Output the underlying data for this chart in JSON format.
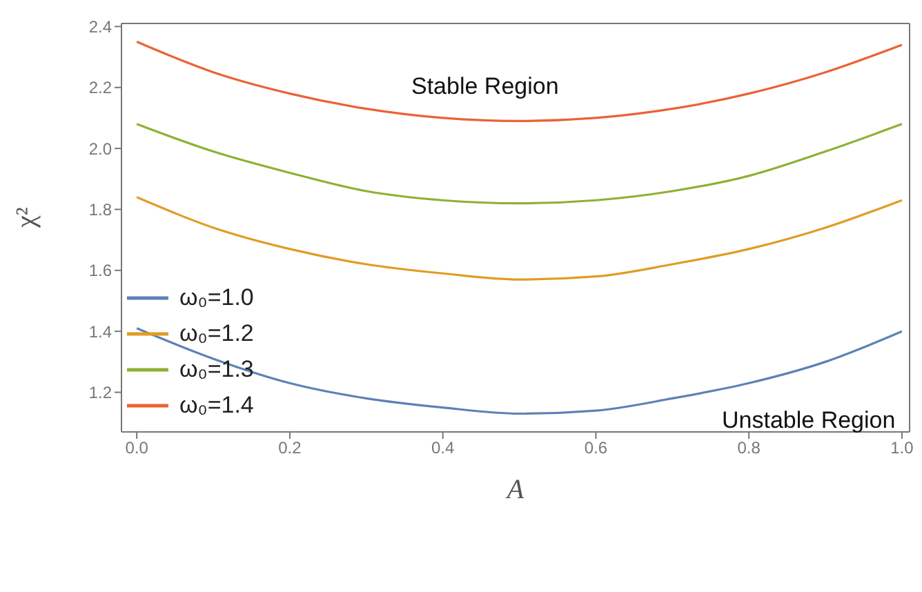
{
  "chart_data": {
    "type": "line",
    "xlabel": "A",
    "ylabel": "χ²",
    "x": [
      0,
      0.1,
      0.2,
      0.3,
      0.4,
      0.5,
      0.6,
      0.7,
      0.8,
      0.9,
      1.0
    ],
    "series": [
      {
        "name": "ω₀=1.0",
        "color": "#5e81b5",
        "values": [
          1.41,
          1.31,
          1.23,
          1.18,
          1.15,
          1.13,
          1.14,
          1.18,
          1.23,
          1.3,
          1.4
        ]
      },
      {
        "name": "ω₀=1.2",
        "color": "#e19c24",
        "values": [
          1.84,
          1.74,
          1.67,
          1.62,
          1.59,
          1.57,
          1.58,
          1.62,
          1.67,
          1.74,
          1.83
        ]
      },
      {
        "name": "ω₀=1.3",
        "color": "#8fb032",
        "values": [
          2.08,
          1.99,
          1.92,
          1.86,
          1.83,
          1.82,
          1.83,
          1.86,
          1.91,
          1.99,
          2.08
        ]
      },
      {
        "name": "ω₀=1.4",
        "color": "#eb6235",
        "values": [
          2.35,
          2.25,
          2.18,
          2.13,
          2.1,
          2.09,
          2.1,
          2.13,
          2.18,
          2.25,
          2.34
        ]
      }
    ],
    "xlim": [
      -0.02,
      1.01
    ],
    "ylim": [
      1.07,
      2.41
    ],
    "xticks": [
      {
        "value": 0,
        "label": "0.0"
      },
      0.2,
      0.4,
      0.6,
      0.8,
      {
        "value": 1,
        "label": "1.0"
      }
    ],
    "yticks": [
      1.2,
      1.4,
      1.6,
      1.8,
      {
        "value": 2,
        "label": "2.0"
      },
      2.2,
      2.4
    ],
    "legend": "bottom left",
    "annotations": [
      "Stable Region",
      "Unstable Region"
    ]
  }
}
